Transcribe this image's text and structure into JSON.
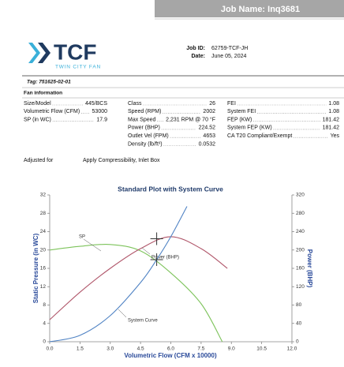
{
  "header": {
    "job_name": "Job Name: Inq3681",
    "logo": "TCF",
    "logo_subtitle": "TWIN CITY FAN",
    "job_id_label": "Job ID:",
    "job_id": "62759-TCF-JH",
    "date_label": "Date:",
    "date": "June 05, 2024"
  },
  "tag": "Tag: 751625-02-01",
  "fan_info": {
    "title": "Fan information",
    "columns": [
      [
        {
          "label": "Size/Model",
          "value": "445/BCS"
        },
        {
          "label": "Volumetric Flow (CFM)",
          "value": 53000
        },
        {
          "label": "SP (in WC)",
          "value": 17.9
        }
      ],
      [
        {
          "label": "Class",
          "value": 26
        },
        {
          "label": "Speed (RPM)",
          "value": 2002
        },
        {
          "label": "Max Speed",
          "value": "2,231 RPM @ 70 °F"
        },
        {
          "label": "Power (BHP)",
          "value": 224.52
        },
        {
          "label": "Outlet Vel (FPM)",
          "value": 4653
        },
        {
          "label": "Density (lb/ft³)",
          "value": 0.0532
        }
      ],
      [
        {
          "label": "FEI",
          "value": 1.08
        },
        {
          "label": "System FEI",
          "value": 1.08
        },
        {
          "label": "FEP (KW)",
          "value": 181.42
        },
        {
          "label": "System FEP (KW)",
          "value": 181.42
        },
        {
          "label": "CA T20 Compliant/Exempt",
          "value": "Yes"
        }
      ]
    ]
  },
  "adjusted_for": {
    "label": "Adjusted for",
    "value": "Apply Compressibility, Inlet Box"
  },
  "chart_data": {
    "type": "line",
    "title": "Standard Plot with System Curve",
    "x_label": "Volumetric Flow (CFM x 10000)",
    "y_label": "Static Pressure (in WC)",
    "y2_label": "Power (BHP)",
    "xlim": [
      0,
      12
    ],
    "ylim": [
      0,
      32
    ],
    "y2lim": [
      0,
      320
    ],
    "xticks": [
      {
        "value": 0,
        "label": "0.0"
      },
      {
        "value": 1.5,
        "label": "1.5"
      },
      {
        "value": 3,
        "label": "3.0"
      },
      {
        "value": 4.5,
        "label": "4.5"
      },
      {
        "value": 6,
        "label": "6.0"
      },
      {
        "value": 7.5,
        "label": "7.5"
      },
      {
        "value": 9,
        "label": "9.0"
      },
      {
        "value": 10.5,
        "label": "10.5"
      },
      {
        "value": 12,
        "label": "12.0"
      }
    ],
    "yticks": [
      0,
      4,
      8,
      12,
      16,
      20,
      24,
      28,
      32
    ],
    "y2ticks": [
      0,
      40,
      80,
      120,
      160,
      200,
      240,
      280,
      320
    ],
    "grid": false,
    "series": [
      {
        "name": "SP",
        "color": "#7dc35b",
        "x": [
          0,
          1.5,
          3,
          4.5,
          6,
          7.5,
          8.55
        ],
        "values": [
          20,
          20.8,
          21.2,
          19.8,
          15,
          8.3,
          0
        ]
      },
      {
        "name": "Power (BHP)",
        "color": "#b0566a",
        "axis": "y2",
        "x": [
          0,
          1.5,
          3,
          4.5,
          6,
          7.5,
          8.8
        ],
        "values": [
          48,
          108,
          160,
          203,
          229,
          203,
          160
        ]
      },
      {
        "name": "System Curve",
        "color": "#5083c4",
        "x": [
          0,
          1.5,
          3,
          4.5,
          5.3,
          6,
          6.8
        ],
        "values": [
          0,
          1.4,
          5.7,
          12.9,
          17.9,
          22.9,
          29.5
        ]
      }
    ],
    "operating_point": {
      "x": 5.3,
      "y": 17.9,
      "y2": 224.52
    }
  }
}
